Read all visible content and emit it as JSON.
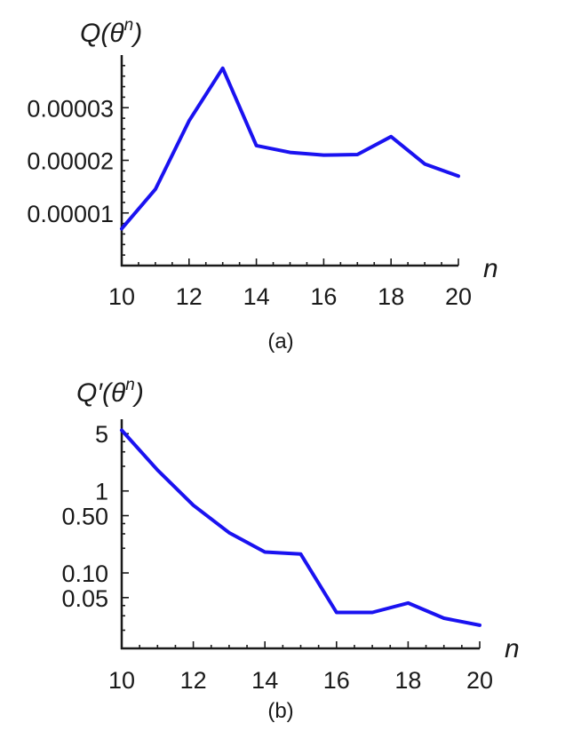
{
  "chart_data": [
    {
      "type": "line",
      "panel_label": "(a)",
      "ylabel": "Q(θ",
      "ylabel_sup": "n",
      "ylabel_close": ")",
      "xlabel": "n",
      "x": [
        10,
        11,
        12,
        13,
        14,
        15,
        16,
        17,
        18,
        19,
        20
      ],
      "series": [
        {
          "values": [
            7e-06,
            1.45e-05,
            2.75e-05,
            3.75e-05,
            2.28e-05,
            2.15e-05,
            2.1e-05,
            2.11e-05,
            2.45e-05,
            1.93e-05,
            1.7e-05
          ],
          "color": "#1a12f0"
        }
      ],
      "xlim": [
        10,
        20
      ],
      "ylim": [
        0,
        4e-05
      ],
      "y_scale": "linear",
      "xticks": [
        10,
        12,
        14,
        16,
        18,
        20
      ],
      "xtick_labels": [
        "10",
        "12",
        "14",
        "16",
        "18",
        "20"
      ],
      "yticks": [
        1e-05,
        2e-05,
        3e-05
      ],
      "ytick_labels": [
        "0.00001",
        "0.00002",
        "0.00003"
      ],
      "grid": false,
      "legend": "none"
    },
    {
      "type": "line",
      "panel_label": "(b)",
      "ylabel": "Q′(θ",
      "ylabel_sup": "n",
      "ylabel_close": ")",
      "xlabel": "n",
      "x": [
        10,
        11,
        12,
        13,
        14,
        15,
        16,
        17,
        18,
        19,
        20
      ],
      "series": [
        {
          "values": [
            5.5,
            1.8,
            0.67,
            0.31,
            0.18,
            0.17,
            0.033,
            0.033,
            0.043,
            0.028,
            0.023
          ],
          "color": "#1a12f0"
        }
      ],
      "xlim": [
        10,
        20
      ],
      "ylim": [
        0.012,
        7.5
      ],
      "y_scale": "log",
      "xticks": [
        10,
        12,
        14,
        16,
        18,
        20
      ],
      "xtick_labels": [
        "10",
        "12",
        "14",
        "16",
        "18",
        "20"
      ],
      "yticks": [
        0.05,
        0.1,
        0.5,
        1,
        5
      ],
      "ytick_labels": [
        "0.05",
        "0.10",
        "0.50",
        "1",
        "5"
      ],
      "grid": false,
      "legend": "none"
    }
  ]
}
